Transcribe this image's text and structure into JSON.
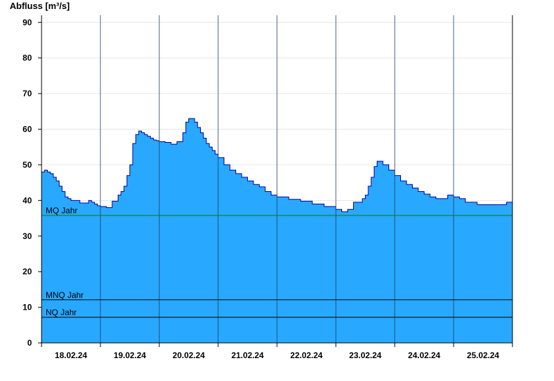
{
  "chart_data": {
    "type": "area",
    "ylabel": "Abfluss [m³/s]",
    "ylim": [
      0,
      92
    ],
    "yticks": [
      0,
      10,
      20,
      30,
      40,
      50,
      60,
      70,
      80,
      90
    ],
    "xlim": [
      0,
      8
    ],
    "day_labels": [
      "18.02.24",
      "19.02.24",
      "20.02.24",
      "21.02.24",
      "22.02.24",
      "23.02.24",
      "24.02.24",
      "25.02.24"
    ],
    "grid": true,
    "series": [
      {
        "color": "#29a8ff",
        "line_color": "#0000a0",
        "x": [
          0.0,
          0.05,
          0.1,
          0.15,
          0.2,
          0.25,
          0.3,
          0.35,
          0.4,
          0.45,
          0.5,
          0.55,
          0.6,
          0.65,
          0.7,
          0.75,
          0.8,
          0.85,
          0.9,
          0.95,
          1.0,
          1.05,
          1.1,
          1.2,
          1.3,
          1.35,
          1.4,
          1.45,
          1.5,
          1.55,
          1.6,
          1.65,
          1.7,
          1.75,
          1.8,
          1.85,
          1.9,
          1.95,
          2.0,
          2.1,
          2.2,
          2.3,
          2.4,
          2.45,
          2.5,
          2.55,
          2.6,
          2.65,
          2.7,
          2.75,
          2.8,
          2.85,
          2.9,
          2.95,
          3.0,
          3.1,
          3.2,
          3.3,
          3.4,
          3.5,
          3.6,
          3.7,
          3.8,
          3.9,
          4.0,
          4.2,
          4.4,
          4.6,
          4.8,
          5.0,
          5.1,
          5.2,
          5.3,
          5.4,
          5.45,
          5.5,
          5.55,
          5.6,
          5.65,
          5.7,
          5.8,
          5.9,
          6.0,
          6.1,
          6.2,
          6.3,
          6.4,
          6.5,
          6.6,
          6.7,
          6.8,
          6.9,
          7.0,
          7.1,
          7.2,
          7.4,
          7.6,
          7.8,
          7.9,
          8.0
        ],
        "values": [
          48.0,
          48.5,
          48.0,
          47.5,
          46.5,
          45.5,
          44.0,
          42.5,
          41.0,
          40.5,
          40.0,
          40.0,
          40.0,
          39.3,
          39.3,
          39.3,
          40.0,
          39.5,
          39.0,
          38.5,
          38.3,
          38.3,
          38.0,
          39.8,
          41.5,
          42.5,
          44.0,
          47.0,
          50.0,
          56.0,
          58.5,
          59.5,
          59.0,
          58.5,
          58.0,
          57.5,
          57.0,
          56.8,
          56.5,
          56.3,
          55.8,
          56.5,
          59.0,
          62.0,
          63.0,
          63.0,
          62.0,
          60.5,
          59.0,
          57.5,
          56.0,
          55.0,
          54.0,
          53.0,
          52.0,
          50.0,
          48.5,
          47.5,
          46.5,
          45.5,
          44.5,
          43.8,
          42.5,
          41.5,
          41.0,
          40.3,
          39.8,
          39.0,
          38.3,
          37.5,
          36.8,
          37.5,
          39.5,
          39.5,
          40.5,
          41.5,
          44.0,
          46.5,
          49.5,
          51.0,
          50.0,
          48.5,
          47.0,
          45.5,
          44.5,
          43.5,
          42.5,
          41.8,
          41.0,
          40.5,
          40.5,
          41.5,
          41.0,
          40.5,
          39.5,
          38.8,
          38.8,
          38.8,
          39.5,
          39.5
        ]
      }
    ],
    "reference_lines": [
      {
        "label": "MQ Jahr",
        "value": 35.8,
        "color": "#008000"
      },
      {
        "label": "MNQ Jahr",
        "value": 12.1,
        "color": "#000000"
      },
      {
        "label": "NQ Jahr",
        "value": 7.2,
        "color": "#000000"
      }
    ]
  }
}
